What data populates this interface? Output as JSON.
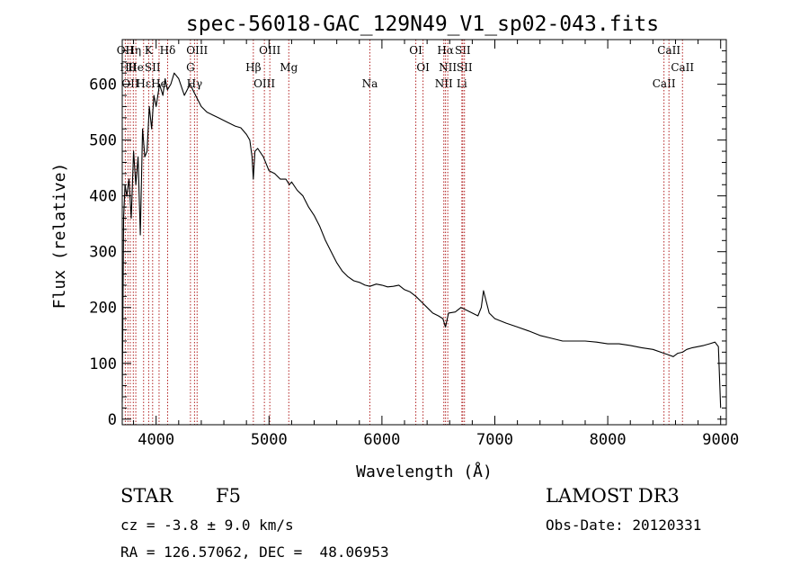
{
  "chart_data": {
    "type": "line",
    "title": "spec-56018-GAC_129N49_V1_sp02-043.fits",
    "xlabel": "Wavelength (Å)",
    "ylabel": "Flux (relative)",
    "xlim": [
      3700,
      9050
    ],
    "ylim": [
      -10,
      680
    ],
    "x_ticks": [
      4000,
      5000,
      6000,
      7000,
      8000,
      9000
    ],
    "y_ticks": [
      0,
      100,
      200,
      300,
      400,
      500,
      600
    ],
    "grid": false,
    "series": [
      {
        "name": "flux",
        "x": [
          3700,
          3712,
          3725,
          3740,
          3760,
          3780,
          3800,
          3820,
          3840,
          3860,
          3880,
          3900,
          3920,
          3940,
          3960,
          3980,
          4000,
          4030,
          4060,
          4080,
          4100,
          4130,
          4160,
          4200,
          4250,
          4300,
          4350,
          4400,
          4450,
          4500,
          4550,
          4600,
          4650,
          4700,
          4750,
          4800,
          4830,
          4850,
          4861,
          4875,
          4900,
          4950,
          5000,
          5050,
          5100,
          5150,
          5180,
          5200,
          5250,
          5300,
          5350,
          5400,
          5450,
          5500,
          5550,
          5600,
          5650,
          5700,
          5750,
          5800,
          5850,
          5893,
          5950,
          6000,
          6050,
          6100,
          6150,
          6200,
          6250,
          6300,
          6350,
          6400,
          6450,
          6500,
          6540,
          6563,
          6590,
          6650,
          6700,
          6750,
          6800,
          6850,
          6880,
          6900,
          6950,
          7000,
          7100,
          7200,
          7300,
          7400,
          7500,
          7600,
          7700,
          7800,
          7900,
          8000,
          8100,
          8200,
          8300,
          8400,
          8498,
          8542,
          8580,
          8620,
          8662,
          8700,
          8750,
          8800,
          8850,
          8900,
          8950,
          8980,
          9000
        ],
        "values": [
          30,
          360,
          420,
          400,
          430,
          360,
          480,
          420,
          470,
          330,
          520,
          470,
          480,
          560,
          520,
          580,
          560,
          600,
          580,
          610,
          590,
          600,
          620,
          610,
          580,
          600,
          580,
          560,
          550,
          545,
          540,
          535,
          530,
          525,
          522,
          510,
          500,
          470,
          430,
          480,
          485,
          470,
          445,
          440,
          430,
          430,
          420,
          425,
          410,
          400,
          380,
          365,
          345,
          320,
          300,
          280,
          265,
          255,
          248,
          245,
          240,
          238,
          242,
          240,
          237,
          238,
          240,
          232,
          228,
          220,
          210,
          200,
          190,
          185,
          180,
          165,
          190,
          192,
          200,
          195,
          190,
          185,
          200,
          230,
          190,
          180,
          172,
          165,
          158,
          150,
          145,
          140,
          140,
          140,
          138,
          135,
          135,
          132,
          128,
          125,
          118,
          115,
          112,
          118,
          120,
          125,
          128,
          130,
          132,
          135,
          138,
          130,
          20
        ]
      }
    ],
    "lines": [
      {
        "x": 3727,
        "label": "OII"
      },
      {
        "x": 3750,
        "label": "Hθ"
      },
      {
        "x": 3771,
        "label": "OII"
      },
      {
        "x": 3798,
        "label": "Hη"
      },
      {
        "x": 3820,
        "label": "He"
      },
      {
        "x": 3889,
        "label": "Hε"
      },
      {
        "x": 3934,
        "label": "K"
      },
      {
        "x": 3969,
        "label": "SII"
      },
      {
        "x": 4026,
        "label": "He"
      },
      {
        "x": 4102,
        "label": "Hδ"
      },
      {
        "x": 4304,
        "label": "G"
      },
      {
        "x": 4340,
        "label": "Hγ"
      },
      {
        "x": 4363,
        "label": "OIII"
      },
      {
        "x": 4861,
        "label": "Hβ"
      },
      {
        "x": 4959,
        "label": "OIII"
      },
      {
        "x": 5007,
        "label": "OIII"
      },
      {
        "x": 5175,
        "label": "Mg"
      },
      {
        "x": 5893,
        "label": "Na"
      },
      {
        "x": 6300,
        "label": "OI"
      },
      {
        "x": 6364,
        "label": "OI"
      },
      {
        "x": 6548,
        "label": "NII"
      },
      {
        "x": 6563,
        "label": "Hα"
      },
      {
        "x": 6583,
        "label": "NII"
      },
      {
        "x": 6708,
        "label": "Li"
      },
      {
        "x": 6716,
        "label": "SII"
      },
      {
        "x": 6731,
        "label": "SII"
      },
      {
        "x": 8498,
        "label": "CaII"
      },
      {
        "x": 8542,
        "label": "CaII"
      },
      {
        "x": 8662,
        "label": "CaII"
      }
    ]
  },
  "info": {
    "object_class": "STAR",
    "subclass": "F5",
    "survey": "LAMOST DR3",
    "cz": "cz = -3.8 ± 9.0 km/s",
    "obs_date": "Obs-Date: 20120331",
    "coords": "RA = 126.57062, DEC =  48.06953"
  }
}
